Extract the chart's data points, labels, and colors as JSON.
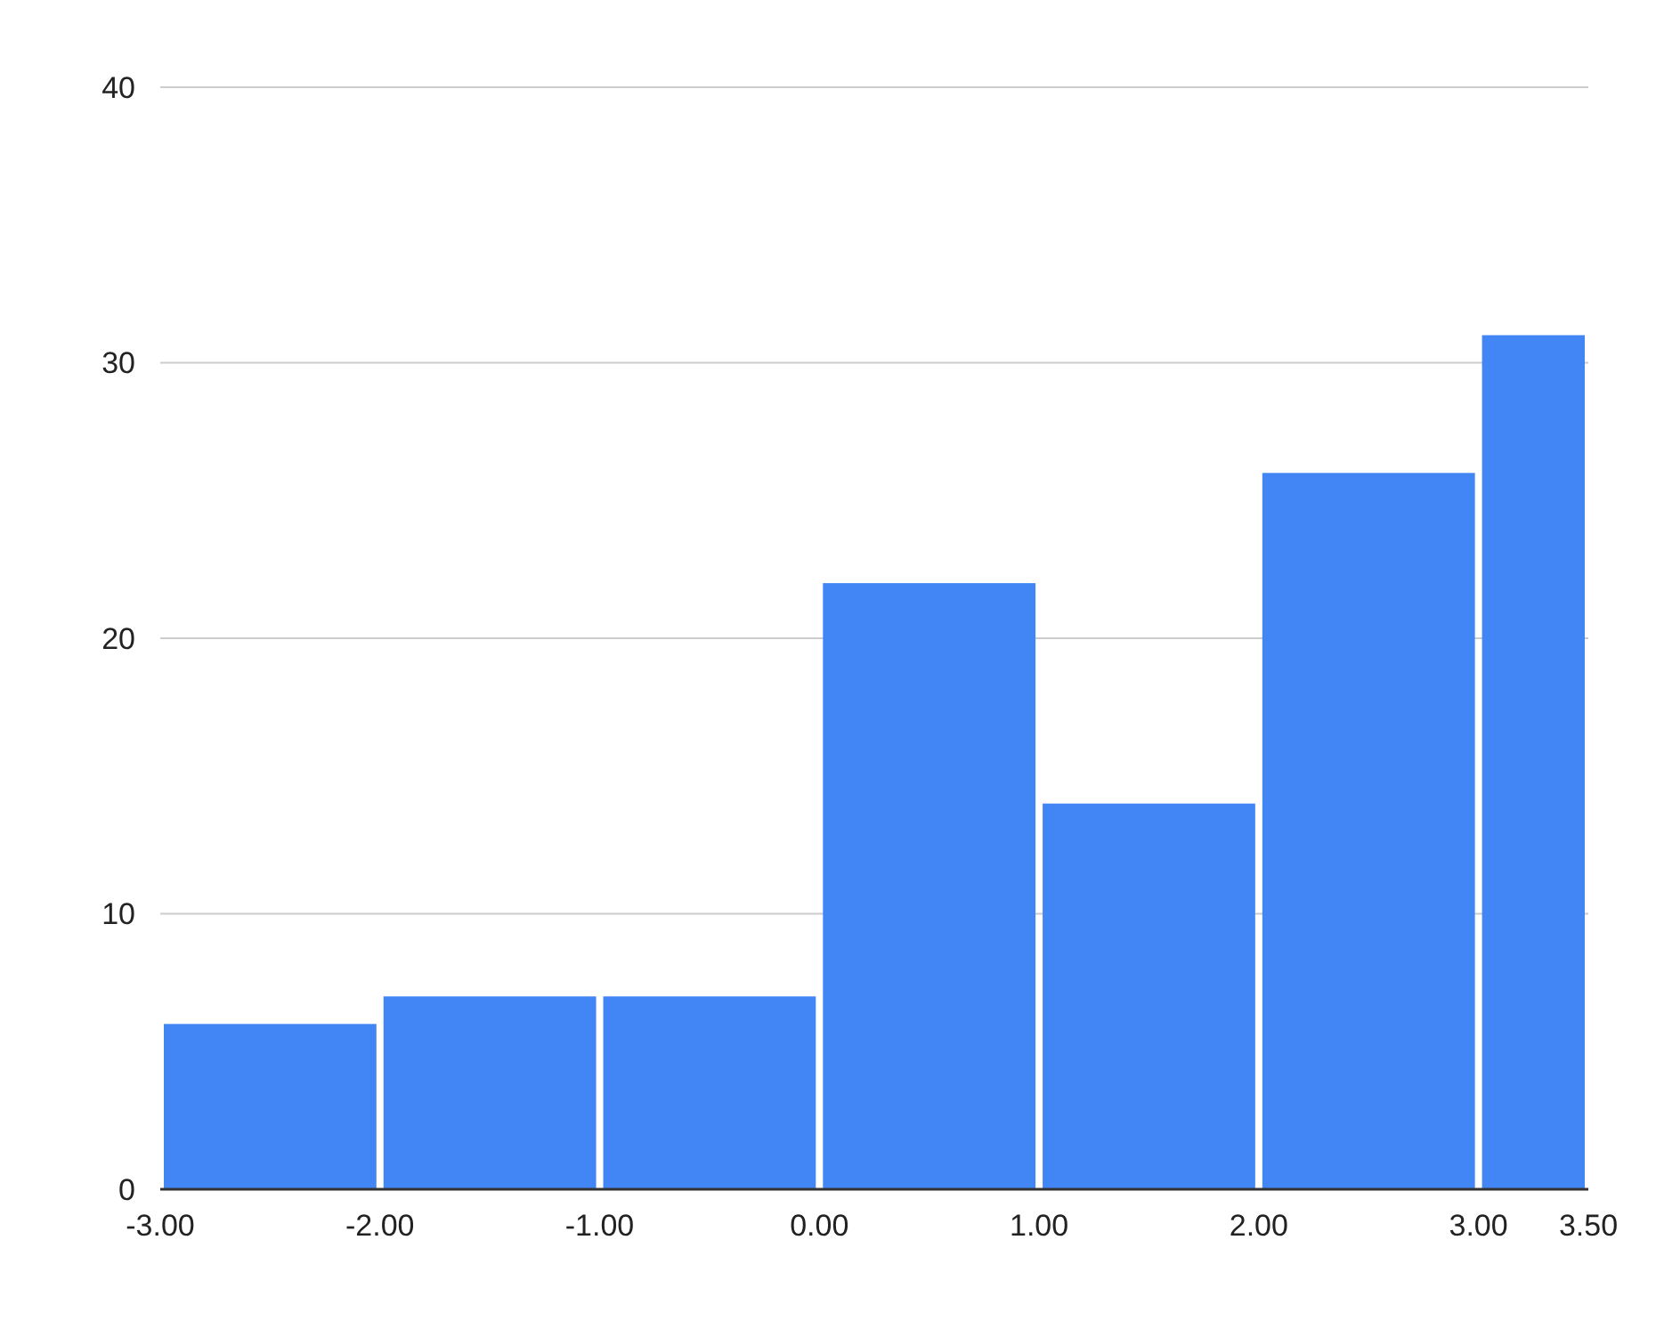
{
  "chart_data": {
    "type": "histogram",
    "bins": [
      -3,
      -2,
      -1,
      0,
      1,
      2,
      3,
      3.5
    ],
    "values": [
      6,
      7,
      7,
      22,
      14,
      26,
      31
    ],
    "color": "#4285f4",
    "xlim": [
      -3,
      3.5
    ],
    "xticks": [
      {
        "value": -3,
        "label": "-3.00"
      },
      {
        "value": -2,
        "label": "-2.00"
      },
      {
        "value": -1,
        "label": "-1.00"
      },
      {
        "value": 0,
        "label": "0.00"
      },
      {
        "value": 1,
        "label": "1.00"
      },
      {
        "value": 2,
        "label": "2.00"
      },
      {
        "value": 3,
        "label": "3.00"
      },
      {
        "value": 3.5,
        "label": "3.50"
      }
    ],
    "ylim": [
      0,
      40
    ],
    "yticks": [
      0,
      10,
      20,
      30,
      40
    ],
    "grid": "y"
  }
}
